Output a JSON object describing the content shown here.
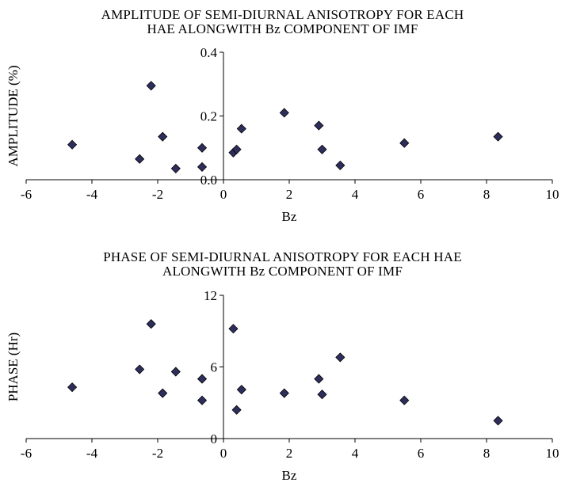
{
  "chart_data": [
    {
      "type": "scatter",
      "title": [
        "AMPLITUDE OF SEMI-DIURNAL ANISOTROPY FOR EACH",
        "HAE ALONGWITH Bz COMPONENT OF IMF"
      ],
      "xlabel": "Bz",
      "ylabel": "AMPLITUDE (%)",
      "xlim": [
        -6,
        10
      ],
      "ylim": [
        0,
        0.4
      ],
      "x_ticks": [
        "-6",
        "-4",
        "-2",
        "0",
        "2",
        "4",
        "6",
        "8",
        "10"
      ],
      "y_ticks": [
        "0.0",
        "0.2",
        "0.4"
      ],
      "grid": false,
      "legend": "none",
      "marker": "diamond",
      "marker_color": "#2e2e5c",
      "series": [
        {
          "x": [
            -4.6,
            -2.55,
            -2.2,
            -1.85,
            -1.45,
            -0.65,
            -0.65,
            0.3,
            0.4,
            0.55,
            1.85,
            2.9,
            3.0,
            3.55,
            5.5,
            8.35
          ],
          "y": [
            0.11,
            0.065,
            0.295,
            0.135,
            0.035,
            0.04,
            0.1,
            0.085,
            0.095,
            0.16,
            0.21,
            0.17,
            0.095,
            0.045,
            0.115,
            0.135
          ]
        }
      ]
    },
    {
      "type": "scatter",
      "title": [
        "PHASE OF SEMI-DIURNAL ANISOTROPY FOR EACH HAE",
        "ALONGWITH Bz COMPONENT OF IMF"
      ],
      "xlabel": "Bz",
      "ylabel": "PHASE (Hr)",
      "xlim": [
        -6,
        10
      ],
      "ylim": [
        0,
        12
      ],
      "x_ticks": [
        "-6",
        "-4",
        "-2",
        "0",
        "2",
        "4",
        "6",
        "8",
        "10"
      ],
      "y_ticks": [
        "0",
        "6",
        "12"
      ],
      "grid": false,
      "legend": "none",
      "marker": "diamond",
      "marker_color": "#2e2e5c",
      "series": [
        {
          "x": [
            -4.6,
            -2.55,
            -2.2,
            -1.85,
            -1.45,
            -0.65,
            -0.65,
            0.3,
            0.4,
            0.55,
            1.85,
            2.9,
            3.0,
            3.55,
            5.5,
            8.35
          ],
          "y": [
            4.3,
            5.8,
            9.6,
            3.8,
            5.6,
            3.2,
            5.0,
            9.2,
            2.4,
            4.1,
            3.8,
            5.0,
            3.7,
            6.8,
            3.2,
            1.5
          ]
        }
      ]
    }
  ]
}
